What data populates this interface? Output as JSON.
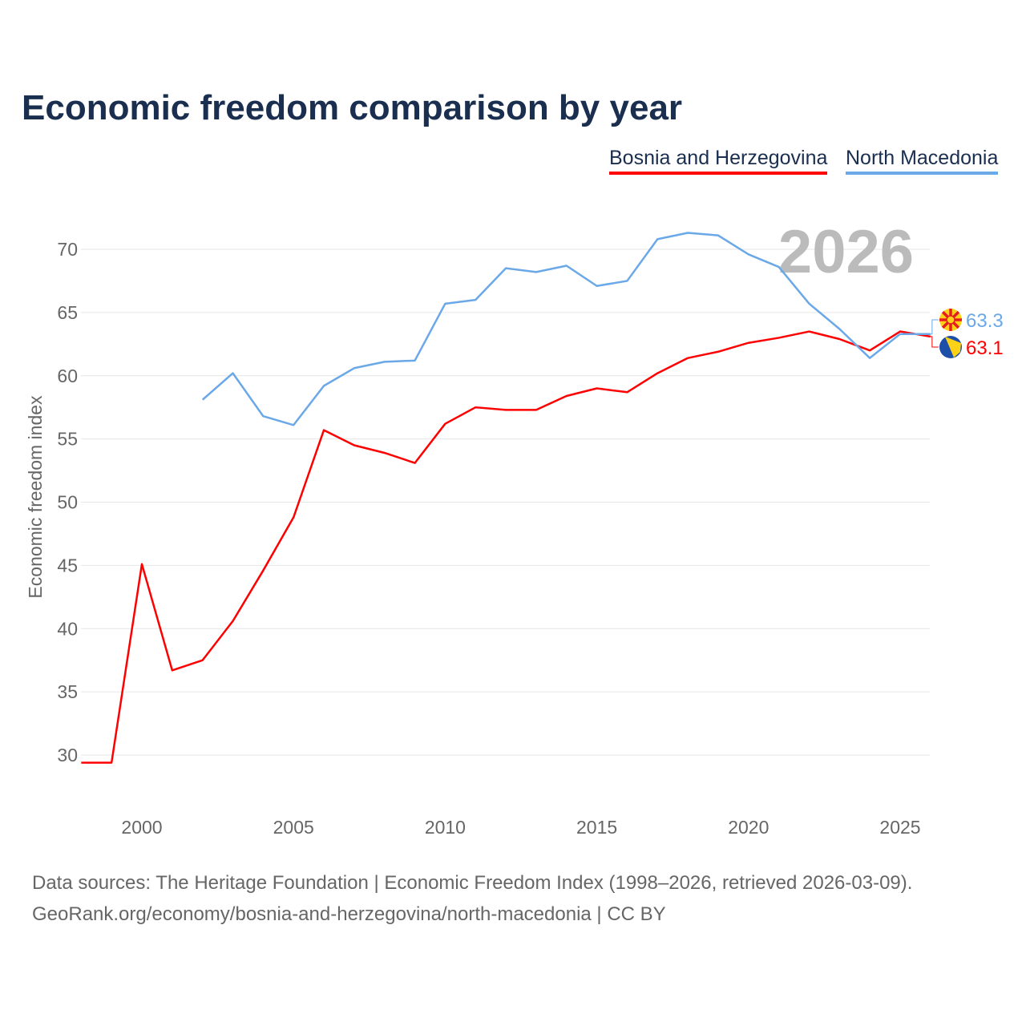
{
  "title": "Economic freedom comparison by year",
  "footer": {
    "line1": "Data sources: The Heritage Foundation | Economic Freedom Index (1998–2026, retrieved 2026-03-09).",
    "line2": "GeoRank.org/economy/bosnia-and-herzegovina/north-macedonia | CC BY"
  },
  "chart_data": {
    "type": "line",
    "title": "Economic freedom comparison by year",
    "xlabel": "",
    "ylabel": "Economic freedom index",
    "year_watermark": "2026",
    "xlim": [
      1998,
      2026
    ],
    "ylim": [
      25,
      73
    ],
    "xticks": [
      2000,
      2005,
      2010,
      2015,
      2020,
      2025
    ],
    "yticks": [
      30,
      35,
      40,
      45,
      50,
      55,
      60,
      65,
      70
    ],
    "grid": true,
    "legend_position": "top-right",
    "series": [
      {
        "name": "Bosnia and Herzegovina",
        "color": "#ff0000",
        "flag": "bosnia-flag-icon",
        "end_label": "63.1",
        "x": [
          1998,
          1999,
          2000,
          2001,
          2002,
          2003,
          2004,
          2005,
          2006,
          2007,
          2008,
          2009,
          2010,
          2011,
          2012,
          2013,
          2014,
          2015,
          2016,
          2017,
          2018,
          2019,
          2020,
          2021,
          2022,
          2023,
          2024,
          2025,
          2026
        ],
        "values": [
          29.4,
          29.4,
          45.1,
          36.7,
          37.5,
          40.6,
          44.6,
          48.8,
          55.7,
          54.5,
          53.9,
          53.1,
          56.2,
          57.5,
          57.3,
          57.3,
          58.4,
          59.0,
          58.7,
          60.2,
          61.4,
          61.9,
          62.6,
          63.0,
          63.5,
          62.9,
          62.0,
          63.5,
          63.1
        ]
      },
      {
        "name": "North Macedonia",
        "color": "#6aa8e8",
        "flag": "north-macedonia-flag-icon",
        "end_label": "63.3",
        "x": [
          2002,
          2003,
          2004,
          2005,
          2006,
          2007,
          2008,
          2009,
          2010,
          2011,
          2012,
          2013,
          2014,
          2015,
          2016,
          2017,
          2018,
          2019,
          2020,
          2021,
          2022,
          2023,
          2024,
          2025,
          2026
        ],
        "values": [
          58.1,
          60.2,
          56.8,
          56.1,
          59.2,
          60.6,
          61.1,
          61.2,
          65.7,
          66.0,
          68.5,
          68.2,
          68.7,
          67.1,
          67.5,
          70.8,
          71.3,
          71.1,
          69.6,
          68.6,
          65.7,
          63.7,
          61.4,
          63.3,
          63.3
        ]
      }
    ]
  }
}
